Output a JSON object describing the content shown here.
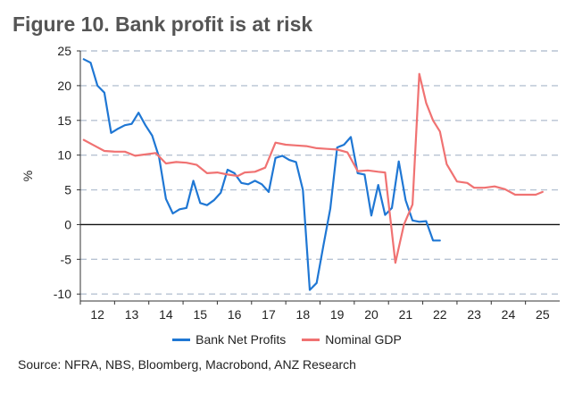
{
  "title": "Figure 10. Bank profit is at risk",
  "source": "Source: NFRA, NBS, Bloomberg, Macrobond, ANZ Research",
  "chart_data": {
    "type": "line",
    "title": "Figure 10. Bank profit is at risk",
    "xlabel": "",
    "ylabel": "%",
    "xlim": [
      2011.5,
      2025.5
    ],
    "ylim": [
      -11,
      25
    ],
    "yticks": [
      25,
      20,
      15,
      10,
      5,
      0,
      -5,
      -10
    ],
    "xticks": [
      "12",
      "13",
      "14",
      "15",
      "16",
      "17",
      "18",
      "19",
      "20",
      "21",
      "22",
      "23",
      "24",
      "25"
    ],
    "grid": "horizontal-dashed",
    "legend_position": "bottom",
    "series": [
      {
        "name": "Bank Net Profits",
        "color": "#1f77d4",
        "x": [
          2011.6,
          2011.8,
          2012.0,
          2012.2,
          2012.4,
          2012.6,
          2012.8,
          2013.0,
          2013.2,
          2013.4,
          2013.6,
          2013.8,
          2014.0,
          2014.2,
          2014.4,
          2014.6,
          2014.8,
          2015.0,
          2015.2,
          2015.4,
          2015.6,
          2015.8,
          2016.0,
          2016.2,
          2016.4,
          2016.6,
          2016.8,
          2017.0,
          2017.2,
          2017.4,
          2017.6,
          2017.8,
          2018.0,
          2018.2,
          2018.4,
          2018.6,
          2018.8,
          2019.0,
          2019.2,
          2019.4,
          2019.6,
          2019.8,
          2020.0,
          2020.2,
          2020.4,
          2020.6,
          2020.8,
          2021.0,
          2021.2,
          2021.4,
          2021.6,
          2021.8,
          2022.0,
          2022.2,
          2022.4,
          2022.6,
          2022.8,
          2023.0,
          2023.2,
          2023.4,
          2023.6,
          2023.8,
          2024.0,
          2024.2,
          2024.4
        ],
        "values": [
          23.8,
          23.3,
          20.0,
          19.0,
          13.2,
          13.8,
          14.3,
          14.5,
          16.1,
          14.3,
          12.8,
          9.7,
          3.7,
          1.6,
          2.2,
          2.4,
          6.3,
          3.1,
          2.8,
          3.5,
          4.6,
          7.9,
          7.4,
          6.0,
          5.8,
          6.3,
          5.8,
          4.7,
          9.6,
          9.9,
          9.3,
          9.0,
          5.0,
          -9.4,
          -8.4,
          -3.0,
          2.3,
          11.1,
          11.5,
          12.6,
          7.4,
          7.2,
          1.3,
          5.7,
          1.4,
          2.4,
          9.1,
          3.5,
          0.6,
          0.4,
          0.5,
          -2.3,
          -2.3,
          null,
          null,
          null,
          null,
          null,
          null,
          null,
          null,
          null,
          null,
          null,
          null
        ]
      },
      {
        "name": "Nominal GDP",
        "color": "#f07272",
        "x": [
          2011.6,
          2011.9,
          2012.2,
          2012.5,
          2012.8,
          2013.1,
          2013.4,
          2013.7,
          2014.0,
          2014.3,
          2014.6,
          2014.9,
          2015.2,
          2015.5,
          2015.8,
          2016.1,
          2016.3,
          2016.6,
          2016.9,
          2017.2,
          2017.5,
          2017.8,
          2018.1,
          2018.4,
          2018.7,
          2019.0,
          2019.3,
          2019.6,
          2019.9,
          2020.2,
          2020.4,
          2020.7,
          2020.95,
          2021.2,
          2021.4,
          2021.6,
          2021.8,
          2022.0,
          2022.2,
          2022.5,
          2022.8,
          2023.0,
          2023.3,
          2023.6,
          2023.9,
          2024.2,
          2024.5,
          2024.8,
          2025.0
        ],
        "values": [
          12.2,
          11.4,
          10.6,
          10.5,
          10.5,
          9.9,
          10.1,
          10.3,
          8.8,
          9.0,
          8.9,
          8.6,
          7.4,
          7.5,
          7.2,
          7.0,
          7.5,
          7.6,
          8.2,
          11.8,
          11.5,
          11.4,
          11.3,
          11.0,
          10.9,
          10.8,
          10.4,
          7.7,
          7.8,
          7.6,
          7.5,
          -5.5,
          0.0,
          2.9,
          21.7,
          17.5,
          15.0,
          13.4,
          8.7,
          6.2,
          6.0,
          5.3,
          5.3,
          5.5,
          5.1,
          4.3,
          4.3,
          4.3,
          4.7
        ]
      }
    ]
  },
  "legend": {
    "items": [
      {
        "label": "Bank Net Profits",
        "color": "#1f77d4"
      },
      {
        "label": "Nominal GDP",
        "color": "#f07272"
      }
    ]
  }
}
